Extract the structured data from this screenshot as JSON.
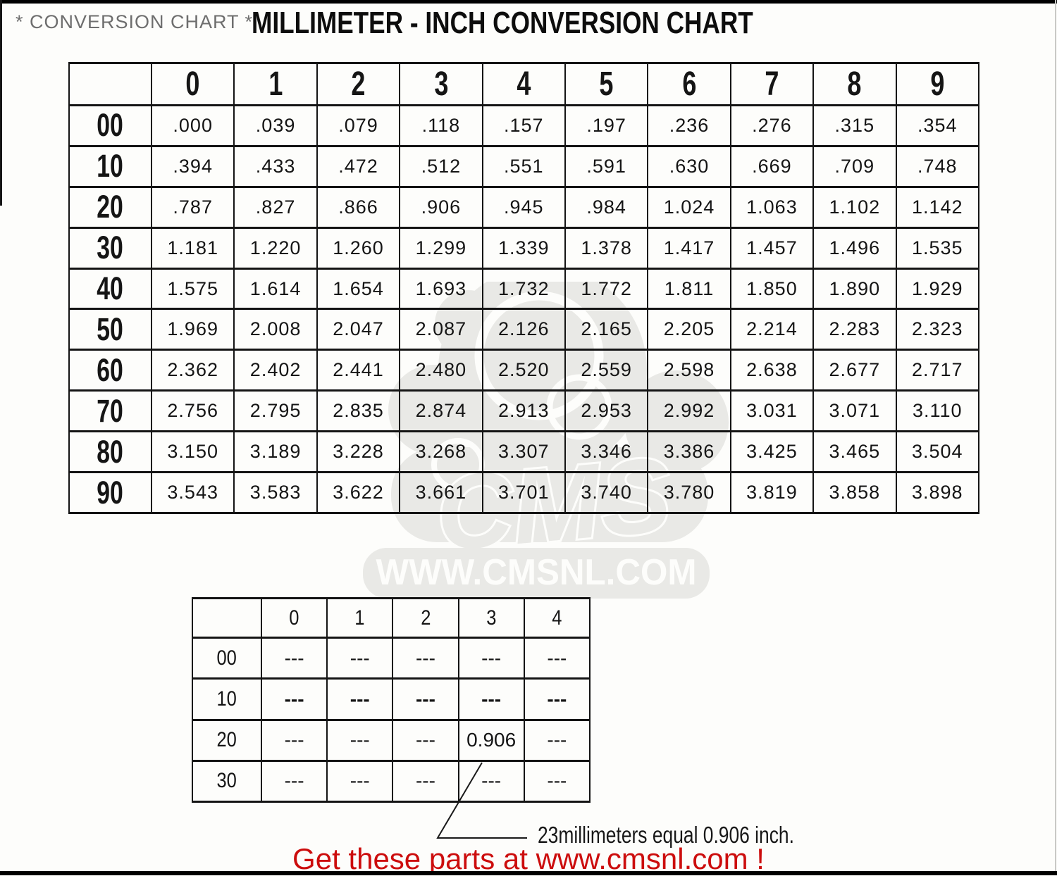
{
  "header": {
    "subtitle": "* CONVERSION CHART *",
    "title": "MILLIMETER - INCH CONVERSION CHART"
  },
  "chart_data": {
    "type": "table",
    "title": "MILLIMETER - INCH CONVERSION CHART",
    "col_headers": [
      "0",
      "1",
      "2",
      "3",
      "4",
      "5",
      "6",
      "7",
      "8",
      "9"
    ],
    "rows": [
      {
        "label": "00",
        "values": [
          ".000",
          ".039",
          ".079",
          ".118",
          ".157",
          ".197",
          ".236",
          ".276",
          ".315",
          ".354"
        ]
      },
      {
        "label": "10",
        "values": [
          ".394",
          ".433",
          ".472",
          ".512",
          ".551",
          ".591",
          ".630",
          ".669",
          ".709",
          ".748"
        ]
      },
      {
        "label": "20",
        "values": [
          ".787",
          ".827",
          ".866",
          ".906",
          ".945",
          ".984",
          "1.024",
          "1.063",
          "1.102",
          "1.142"
        ]
      },
      {
        "label": "30",
        "values": [
          "1.181",
          "1.220",
          "1.260",
          "1.299",
          "1.339",
          "1.378",
          "1.417",
          "1.457",
          "1.496",
          "1.535"
        ]
      },
      {
        "label": "40",
        "values": [
          "1.575",
          "1.614",
          "1.654",
          "1.693",
          "1.732",
          "1.772",
          "1.811",
          "1.850",
          "1.890",
          "1.929"
        ]
      },
      {
        "label": "50",
        "values": [
          "1.969",
          "2.008",
          "2.047",
          "2.087",
          "2.126",
          "2.165",
          "2.205",
          "2.214",
          "2.283",
          "2.323"
        ]
      },
      {
        "label": "60",
        "values": [
          "2.362",
          "2.402",
          "2.441",
          "2.480",
          "2.520",
          "2.559",
          "2.598",
          "2.638",
          "2.677",
          "2.717"
        ]
      },
      {
        "label": "70",
        "values": [
          "2.756",
          "2.795",
          "2.835",
          "2.874",
          "2.913",
          "2.953",
          "2.992",
          "3.031",
          "3.071",
          "3.110"
        ]
      },
      {
        "label": "80",
        "values": [
          "3.150",
          "3.189",
          "3.228",
          "3.268",
          "3.307",
          "3.346",
          "3.386",
          "3.425",
          "3.465",
          "3.504"
        ]
      },
      {
        "label": "90",
        "values": [
          "3.543",
          "3.583",
          "3.622",
          "3.661",
          "3.701",
          "3.740",
          "3.780",
          "3.819",
          "3.858",
          "3.898"
        ]
      }
    ]
  },
  "example_table": {
    "col_headers": [
      "0",
      "1",
      "2",
      "3",
      "4"
    ],
    "rows": [
      {
        "label": "00",
        "values": [
          "---",
          "---",
          "---",
          "---",
          "---"
        ],
        "bold": false
      },
      {
        "label": "10",
        "values": [
          "---",
          "---",
          "---",
          "---",
          "---"
        ],
        "bold": true
      },
      {
        "label": "20",
        "values": [
          "---",
          "---",
          "---",
          "0.906",
          "---"
        ],
        "bold": false
      },
      {
        "label": "30",
        "values": [
          "---",
          "---",
          "---",
          "---",
          "---"
        ],
        "bold": false
      }
    ],
    "annotation": "23millimeters equal 0.906 inch."
  },
  "watermark": {
    "brand": "CMS",
    "url_text": "WWW.CMSNL.COM",
    "color": "#e9e9e6"
  },
  "footer": {
    "promo_text": "Get these parts at www.cmsnl.com !",
    "color": "#cc0d0d"
  }
}
